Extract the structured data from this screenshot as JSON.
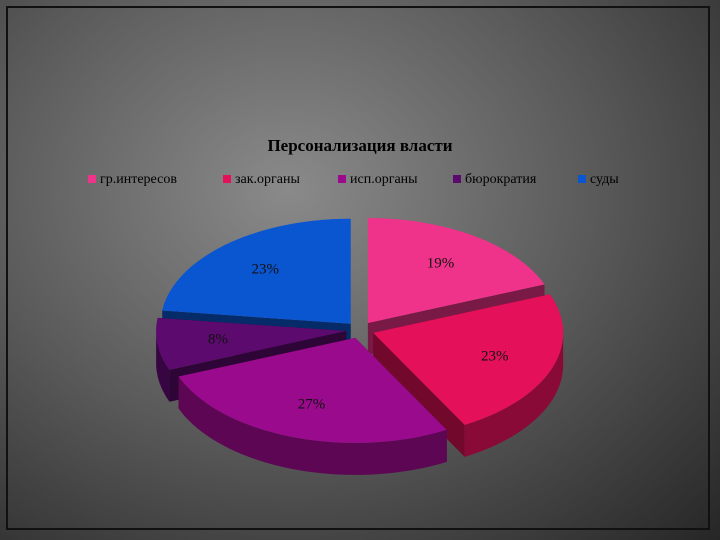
{
  "chart_data": {
    "type": "pie3d",
    "title": "Персонализация власти",
    "categories": [
      "гр.интересов",
      "зак.органы",
      "исп.органы",
      "бюрократия",
      "суды"
    ],
    "values": [
      19,
      23,
      27,
      8,
      23
    ],
    "value_labels": [
      "19%",
      "23%",
      "27%",
      "8%",
      "23%"
    ],
    "colors": [
      "#f0338a",
      "#e5105a",
      "#990a8c",
      "#5c0a6e",
      "#0a55d0"
    ],
    "legend": "top"
  }
}
